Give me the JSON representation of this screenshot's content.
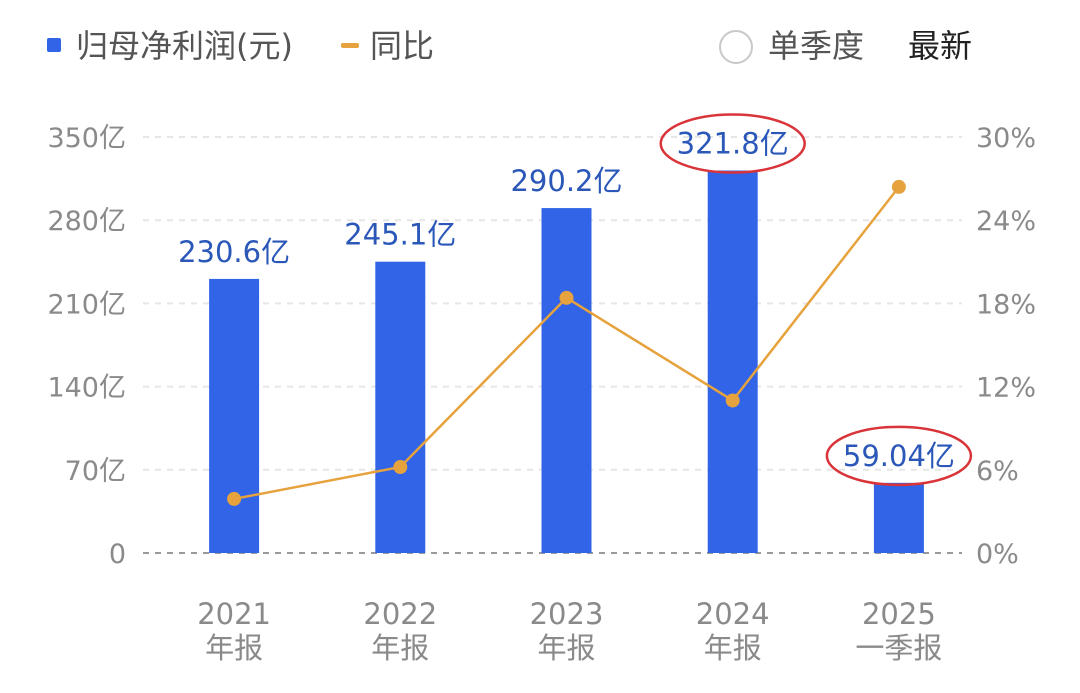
{
  "legend": {
    "bar_label": "归母净利润(元)",
    "line_label": "同比"
  },
  "toggle": {
    "single_quarter_label": "单季度",
    "latest_label": "最新"
  },
  "chart_data": {
    "type": "bar",
    "categories": [
      {
        "year": "2021",
        "period": "年报"
      },
      {
        "year": "2022",
        "period": "年报"
      },
      {
        "year": "2023",
        "period": "年报"
      },
      {
        "year": "2024",
        "period": "年报"
      },
      {
        "year": "2025",
        "period": "一季报"
      }
    ],
    "series": [
      {
        "name": "归母净利润(元)",
        "type": "bar",
        "axis": "left",
        "values": [
          230.6,
          245.1,
          290.2,
          321.8,
          59.04
        ],
        "labels": [
          "230.6亿",
          "245.1亿",
          "290.2亿",
          "321.8亿",
          "59.04亿"
        ],
        "highlighted": [
          false,
          false,
          false,
          true,
          true
        ]
      },
      {
        "name": "同比",
        "type": "line",
        "axis": "right",
        "values": [
          3.9,
          6.2,
          18.4,
          11.0,
          26.4
        ]
      }
    ],
    "left_axis": {
      "ylim": [
        0,
        350
      ],
      "ticks": [
        "0",
        "70亿",
        "140亿",
        "210亿",
        "280亿",
        "350亿"
      ]
    },
    "right_axis": {
      "ylim": [
        0,
        30
      ],
      "ticks": [
        "0%",
        "6%",
        "12%",
        "18%",
        "24%",
        "30%"
      ]
    },
    "grid": true,
    "legend_position": "top-left",
    "colors": {
      "bar": "#3264e8",
      "line": "#e6a23c",
      "bar_label": "#2a57b8",
      "highlight_circle": "#d9343a"
    }
  }
}
